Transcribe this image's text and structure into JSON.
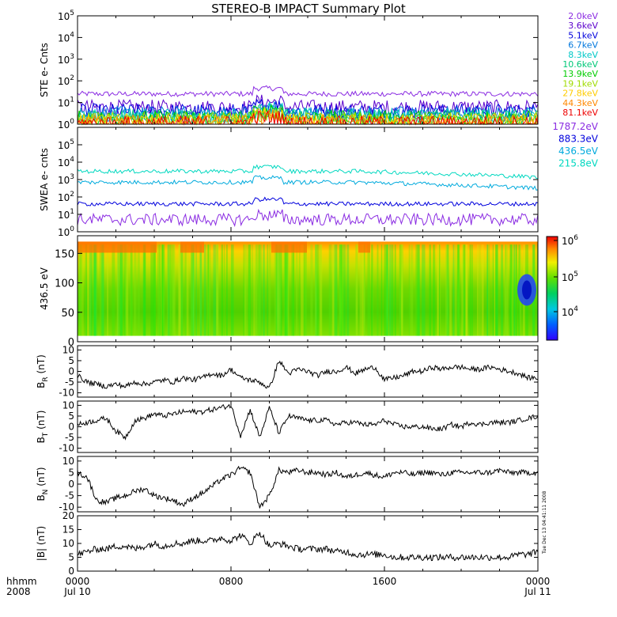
{
  "title": "STEREO-B IMPACT Summary Plot",
  "time_axis": {
    "label_top": "hhmm",
    "label_bottom": "2008",
    "ticks": [
      {
        "hhmm": "0000",
        "date": "Jul 10"
      },
      {
        "hhmm": "0800",
        "date": ""
      },
      {
        "hhmm": "1600",
        "date": ""
      },
      {
        "hhmm": "0000",
        "date": "Jul 11"
      }
    ]
  },
  "side_text": "Tue Dec 13 04:41:11 2008",
  "colors": {
    "ste": [
      "#8a2be2",
      "#5a00cc",
      "#0000dd",
      "#0077dd",
      "#00c8c8",
      "#00c878",
      "#00cc00",
      "#a0dc00",
      "#ffcc00",
      "#ff8800",
      "#ee0000"
    ],
    "swea": [
      "#8a2be2",
      "#0000dd",
      "#00aadd",
      "#00d8c0"
    ],
    "mag_line": "#000000"
  },
  "chart_data": [
    {
      "type": "line",
      "id": "ste",
      "ylabel": "STE e- Cnts",
      "yscale": "log",
      "ylim": [
        1,
        100000
      ],
      "yticks": [
        "10^0",
        "10^1",
        "10^2",
        "10^3",
        "10^4",
        "10^5"
      ],
      "series": [
        {
          "name": "2.0keV",
          "base": 25
        },
        {
          "name": "3.6keV",
          "base": 6
        },
        {
          "name": "5.1keV",
          "base": 4
        },
        {
          "name": "6.7keV",
          "base": 3
        },
        {
          "name": "8.3keV",
          "base": 2.5
        },
        {
          "name": "10.6keV",
          "base": 2.2
        },
        {
          "name": "13.9keV",
          "base": 1.9
        },
        {
          "name": "19.1keV",
          "base": 1.6
        },
        {
          "name": "27.8keV",
          "base": 1.4
        },
        {
          "name": "44.3keV",
          "base": 1.2
        },
        {
          "name": "81.1keV",
          "base": 1.1
        }
      ]
    },
    {
      "type": "line",
      "id": "swea",
      "ylabel": "SWEA e- cnts",
      "yscale": "log",
      "ylim": [
        1,
        1000000
      ],
      "yticks": [
        "10^0",
        "10^1",
        "10^2",
        "10^3",
        "10^4",
        "10^5"
      ],
      "series": [
        {
          "name": "1787.2eV",
          "base": 5
        },
        {
          "name": "883.3eV",
          "base": 40
        },
        {
          "name": "436.5eV",
          "base": 700
        },
        {
          "name": "215.8eV",
          "base": 3000
        }
      ]
    },
    {
      "type": "heatmap",
      "id": "pad",
      "ylabel": "436.5 eV",
      "ylim": [
        0,
        180
      ],
      "yticks": [
        "0",
        "50",
        "100",
        "150"
      ],
      "colorbar_ticks": [
        "10^6",
        "10^5",
        "10^4"
      ]
    },
    {
      "type": "line",
      "id": "br",
      "ylabel_main": "B",
      "ylabel_sub": "R",
      "ylabel_unit": "(nT)",
      "ylim": [
        -12,
        12
      ],
      "yticks": [
        "-10",
        "-5",
        "0",
        "5",
        "10"
      ],
      "x": [
        0,
        0.5,
        1,
        1.5,
        2,
        2.5,
        3,
        3.5,
        4,
        4.5,
        5,
        5.5,
        6,
        6.5,
        7,
        7.5,
        8,
        8.5,
        9,
        9.5,
        10,
        10.5,
        11,
        11.5,
        12,
        12.5,
        13,
        13.5,
        14,
        14.5,
        15,
        15.5,
        16,
        16.5,
        17,
        17.5,
        18,
        18.5,
        19,
        19.5,
        20,
        20.5,
        21,
        21.5,
        22,
        22.5,
        23,
        23.5,
        24
      ],
      "values": [
        -2,
        -5,
        -6,
        -7,
        -6,
        -7,
        -5,
        -6,
        -5,
        -4,
        -5,
        -3,
        -4,
        -3,
        -1,
        -2,
        1,
        -3,
        -4,
        -5,
        -8,
        5,
        -1,
        1,
        0,
        -2,
        0,
        0,
        2,
        -1,
        1,
        2,
        -4,
        -3,
        -2,
        0,
        0,
        2,
        1,
        2,
        2,
        1,
        1,
        2,
        1,
        0,
        -1,
        -3,
        -3
      ]
    },
    {
      "type": "line",
      "id": "bt",
      "ylabel_main": "B",
      "ylabel_sub": "T",
      "ylabel_unit": "(nT)",
      "ylim": [
        -12,
        12
      ],
      "yticks": [
        "-10",
        "-5",
        "0",
        "5",
        "10"
      ],
      "x": [
        0,
        0.5,
        1,
        1.5,
        2,
        2.5,
        3,
        3.5,
        4,
        4.5,
        5,
        5.5,
        6,
        6.5,
        7,
        7.5,
        8,
        8.5,
        9,
        9.5,
        10,
        10.5,
        11,
        11.5,
        12,
        12.5,
        13,
        13.5,
        14,
        14.5,
        15,
        15.5,
        16,
        16.5,
        17,
        17.5,
        18,
        18.5,
        19,
        19.5,
        20,
        20.5,
        21,
        21.5,
        22,
        22.5,
        23,
        23.5,
        24
      ],
      "values": [
        1,
        2,
        3,
        4,
        -2,
        -5,
        3,
        4,
        6,
        5,
        6,
        7,
        7,
        7,
        8,
        9,
        10,
        -4,
        8,
        -5,
        9,
        -3,
        5,
        4,
        3,
        3,
        3,
        1,
        2,
        2,
        1,
        1,
        3,
        1,
        0,
        0,
        0,
        -1,
        -1,
        1,
        0,
        2,
        1,
        2,
        2,
        2,
        3,
        4,
        5
      ]
    },
    {
      "type": "line",
      "id": "bn",
      "ylabel_main": "B",
      "ylabel_sub": "N",
      "ylabel_unit": "(nT)",
      "ylim": [
        -12,
        12
      ],
      "yticks": [
        "-10",
        "-5",
        "0",
        "5",
        "10"
      ],
      "x": [
        0,
        0.5,
        1,
        1.5,
        2,
        2.5,
        3,
        3.5,
        4,
        4.5,
        5,
        5.5,
        6,
        6.5,
        7,
        7.5,
        8,
        8.5,
        9,
        9.5,
        10,
        10.5,
        11,
        11.5,
        12,
        12.5,
        13,
        13.5,
        14,
        14.5,
        15,
        15.5,
        16,
        16.5,
        17,
        17.5,
        18,
        18.5,
        19,
        19.5,
        20,
        20.5,
        21,
        21.5,
        22,
        22.5,
        23,
        23.5,
        24
      ],
      "values": [
        5,
        3,
        -7,
        -8,
        -6,
        -5,
        -3,
        -2,
        -5,
        -6,
        -7,
        -9,
        -6,
        -4,
        -1,
        2,
        4,
        7,
        5,
        -10,
        -5,
        6,
        5,
        6,
        5,
        5,
        4,
        5,
        3,
        4,
        5,
        4,
        3,
        5,
        5,
        4,
        5,
        5,
        4,
        5,
        5,
        5,
        5,
        5,
        6,
        5,
        5,
        5,
        5
      ]
    },
    {
      "type": "line",
      "id": "bmag",
      "ylabel_main": "|B|",
      "ylabel_sub": "",
      "ylabel_unit": "(nT)",
      "ylim": [
        0,
        20
      ],
      "yticks": [
        "0",
        "5",
        "10",
        "15",
        "20"
      ],
      "x": [
        0,
        0.5,
        1,
        1.5,
        2,
        2.5,
        3,
        3.5,
        4,
        4.5,
        5,
        5.5,
        6,
        6.5,
        7,
        7.5,
        8,
        8.5,
        9,
        9.5,
        10,
        10.5,
        11,
        11.5,
        12,
        12.5,
        13,
        13.5,
        14,
        14.5,
        15,
        15.5,
        16,
        16.5,
        17,
        17.5,
        18,
        18.5,
        19,
        19.5,
        20,
        20.5,
        21,
        21.5,
        22,
        22.5,
        23,
        23.5,
        24
      ],
      "values": [
        6,
        7,
        8,
        8,
        9,
        9,
        8,
        9,
        10,
        9,
        10,
        10,
        11,
        11,
        11,
        12,
        11,
        13,
        10,
        14,
        9,
        10,
        9,
        8,
        8,
        8,
        8,
        7,
        7,
        6,
        6,
        6,
        6,
        5,
        5,
        5,
        5,
        5,
        5,
        5,
        5,
        5,
        5,
        5,
        5,
        5,
        6,
        6,
        7
      ]
    }
  ]
}
